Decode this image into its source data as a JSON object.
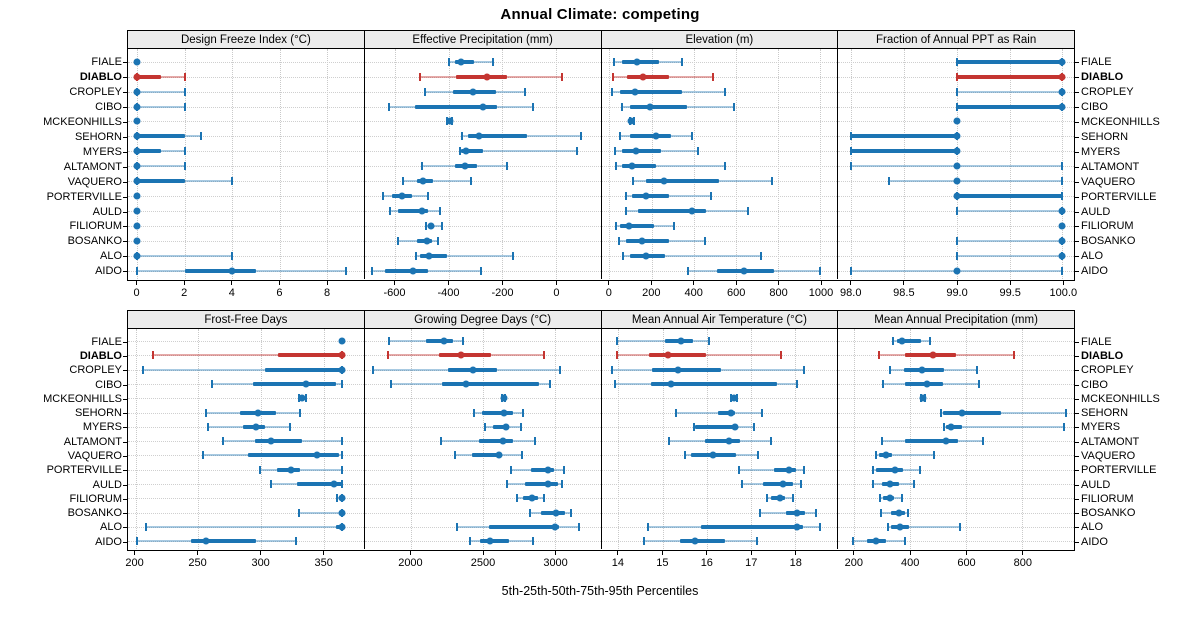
{
  "title": "Annual Climate: competing",
  "footer": "5th-25th-50th-75th-95th Percentiles",
  "colors": {
    "blue": "#1b74b3",
    "blue_light": "rgba(27,116,179,0.38)",
    "red": "#c43531",
    "red_light": "rgba(196,53,49,0.42)",
    "strip_bg": "#ececec",
    "grid": "#cfcfcf"
  },
  "chart_data": {
    "type": "dotplot",
    "subtype": "percentile-ranges",
    "percentiles": [
      5,
      25,
      50,
      75,
      95
    ],
    "legend_note": "values per site are [p5,p25,p50,p75,p95]",
    "sites": [
      "FIALE",
      "DIABLO",
      "CROPLEY",
      "CIBO",
      "MCKEONHILLS",
      "SEHORN",
      "MYERS",
      "ALTAMONT",
      "VAQUERO",
      "PORTERVILLE",
      "AULD",
      "FILIORUM",
      "BOSANKO",
      "ALO",
      "AIDO"
    ],
    "highlight_site": "DIABLO",
    "grid": true,
    "panels": [
      {
        "band": 0,
        "title": "Design Freeze Index (°C)",
        "xlim": [
          -0.4,
          9.55
        ],
        "ticks": [
          0,
          2,
          4,
          6,
          8
        ],
        "tick_labels": [
          "0",
          "2",
          "4",
          "6",
          "8"
        ],
        "values": [
          [
            0,
            0,
            0,
            0,
            0
          ],
          [
            0,
            0,
            0,
            1,
            2
          ],
          [
            0,
            0,
            0,
            0,
            2
          ],
          [
            0,
            0,
            0,
            0,
            2
          ],
          [
            0,
            0,
            0,
            0,
            0
          ],
          [
            0,
            0,
            0,
            2,
            2.7
          ],
          [
            0,
            0,
            0,
            1,
            2
          ],
          [
            0,
            0,
            0,
            0,
            2
          ],
          [
            0,
            0,
            0,
            2,
            4
          ],
          [
            0,
            0,
            0,
            0,
            0
          ],
          [
            0,
            0,
            0,
            0,
            0
          ],
          [
            0,
            0,
            0,
            0,
            0
          ],
          [
            0,
            0,
            0,
            0,
            0
          ],
          [
            0,
            0,
            0,
            0,
            4
          ],
          [
            0,
            2,
            4,
            5,
            8.8
          ]
        ]
      },
      {
        "band": 0,
        "title": "Effective Precipitation (mm)",
        "xlim": [
          -713,
          165
        ],
        "ticks": [
          -600,
          -400,
          -200,
          0
        ],
        "tick_labels": [
          "-600",
          "-400",
          "-200",
          "0"
        ],
        "values": [
          [
            -400,
            -378,
            -355,
            -307,
            -234
          ],
          [
            -509,
            -374,
            -259,
            -183,
            20
          ],
          [
            -490,
            -384,
            -311,
            -226,
            -116
          ],
          [
            -622,
            -524,
            -271,
            -220,
            -88
          ],
          [
            -405,
            -400,
            -397,
            -393,
            -389
          ],
          [
            -350,
            -329,
            -287,
            -110,
            91
          ],
          [
            -360,
            -354,
            -335,
            -271,
            79
          ],
          [
            -500,
            -378,
            -339,
            -295,
            -183
          ],
          [
            -571,
            -518,
            -496,
            -460,
            -317
          ],
          [
            -646,
            -612,
            -573,
            -537,
            -478
          ],
          [
            -620,
            -591,
            -500,
            -476,
            -433
          ],
          [
            -485,
            -478,
            -467,
            -454,
            -424
          ],
          [
            -591,
            -518,
            -482,
            -463,
            -441
          ],
          [
            -521,
            -506,
            -473,
            -408,
            -161
          ],
          [
            -687,
            -637,
            -534,
            -478,
            -280
          ]
        ]
      },
      {
        "band": 0,
        "title": "Elevation (m)",
        "xlim": [
          -37,
          1080
        ],
        "ticks": [
          0,
          200,
          400,
          600,
          800,
          1000
        ],
        "tick_labels": [
          "0",
          "200",
          "400",
          "600",
          "800",
          "1000"
        ],
        "values": [
          [
            22,
            62,
            130,
            234,
            344
          ],
          [
            19,
            86,
            159,
            281,
            492
          ],
          [
            11,
            53,
            122,
            344,
            550
          ],
          [
            58,
            97,
            194,
            370,
            589
          ],
          [
            98,
            102,
            105,
            110,
            116
          ],
          [
            53,
            100,
            219,
            292,
            394
          ],
          [
            27,
            58,
            128,
            245,
            422
          ],
          [
            34,
            62,
            109,
            219,
            550
          ],
          [
            112,
            175,
            261,
            519,
            769
          ],
          [
            81,
            109,
            172,
            281,
            484
          ],
          [
            78,
            136,
            391,
            456,
            656
          ],
          [
            31,
            50,
            94,
            214,
            308
          ],
          [
            47,
            81,
            156,
            281,
            453
          ],
          [
            66,
            100,
            172,
            266,
            719
          ],
          [
            375,
            508,
            636,
            781,
            1000
          ]
        ]
      },
      {
        "band": 0,
        "title": "Fraction of Annual PPT as Rain",
        "xlim": [
          97.88,
          100.11
        ],
        "ticks": [
          98.0,
          98.5,
          99.0,
          99.5,
          100.0
        ],
        "tick_labels": [
          "98.0",
          "98.5",
          "99.0",
          "99.5",
          "100.0"
        ],
        "values": [
          [
            99,
            99,
            100,
            100,
            100
          ],
          [
            99,
            99,
            100,
            100,
            100
          ],
          [
            99,
            100,
            100,
            100,
            100
          ],
          [
            99,
            99,
            100,
            100,
            100
          ],
          [
            99,
            99,
            99,
            99,
            99
          ],
          [
            98,
            98,
            99,
            99,
            99
          ],
          [
            98,
            98,
            99,
            99,
            99
          ],
          [
            98,
            99,
            99,
            99,
            100
          ],
          [
            98.36,
            99,
            99,
            99,
            100
          ],
          [
            99,
            99,
            99,
            100,
            100
          ],
          [
            99,
            100,
            100,
            100,
            100
          ],
          [
            100,
            100,
            100,
            100,
            100
          ],
          [
            99,
            100,
            100,
            100,
            100
          ],
          [
            99,
            100,
            100,
            100,
            100
          ],
          [
            98,
            99,
            99,
            99,
            100
          ]
        ]
      },
      {
        "band": 1,
        "title": "Frost-Free Days",
        "xlim": [
          194,
          382
        ],
        "ticks": [
          200,
          250,
          300,
          350
        ],
        "tick_labels": [
          "200",
          "250",
          "300",
          "350"
        ],
        "values": [
          [
            365,
            365,
            365,
            365,
            365
          ],
          [
            214,
            314,
            365,
            365,
            365
          ],
          [
            206,
            303,
            365,
            365,
            365
          ],
          [
            261,
            294,
            336,
            360,
            365
          ],
          [
            330,
            331,
            333,
            335,
            336
          ],
          [
            256,
            283,
            298,
            312,
            331
          ],
          [
            258,
            286,
            296,
            303,
            323
          ],
          [
            270,
            295,
            308,
            333,
            365
          ],
          [
            254,
            290,
            345,
            362,
            365
          ],
          [
            299,
            313,
            324,
            331,
            365
          ],
          [
            308,
            329,
            358,
            365,
            365
          ],
          [
            361,
            364,
            365,
            365,
            365
          ],
          [
            330,
            362,
            365,
            365,
            365
          ],
          [
            208,
            360,
            365,
            365,
            365
          ],
          [
            201,
            244,
            256,
            296,
            328
          ]
        ]
      },
      {
        "band": 1,
        "title": "Growing Degree Days (°C)",
        "xlim": [
          1680,
          3313
        ],
        "ticks": [
          2000,
          2500,
          3000
        ],
        "tick_labels": [
          "2000",
          "2500",
          "3000"
        ],
        "values": [
          [
            1849,
            2101,
            2232,
            2293,
            2360
          ],
          [
            1838,
            2196,
            2349,
            2552,
            2919
          ],
          [
            1737,
            2259,
            2428,
            2597,
            3029
          ],
          [
            1865,
            2214,
            2383,
            2890,
            2964
          ],
          [
            2630,
            2637,
            2642,
            2647,
            2654
          ],
          [
            2435,
            2495,
            2642,
            2705,
            2777
          ],
          [
            2511,
            2570,
            2660,
            2682,
            2759
          ],
          [
            2209,
            2473,
            2637,
            2709,
            2856
          ],
          [
            2304,
            2421,
            2608,
            2624,
            2766
          ],
          [
            2691,
            2833,
            2946,
            2991,
            3058
          ],
          [
            2664,
            2788,
            2952,
            3020,
            3047
          ],
          [
            2736,
            2777,
            2840,
            2878,
            2923
          ],
          [
            2826,
            2901,
            3007,
            3070,
            3110
          ],
          [
            2322,
            2541,
            2998,
            3029,
            3164
          ],
          [
            2412,
            2480,
            2547,
            2682,
            2845
          ]
        ]
      },
      {
        "band": 1,
        "title": "Mean Annual Air Temperature (°C)",
        "xlim": [
          13.62,
          18.95
        ],
        "ticks": [
          14,
          15,
          16,
          17,
          18
        ],
        "tick_labels": [
          "14",
          "15",
          "16",
          "17",
          "18"
        ],
        "values": [
          [
            13.96,
            15.06,
            15.41,
            15.7,
            16.05
          ],
          [
            13.98,
            14.7,
            15.13,
            15.98,
            17.67
          ],
          [
            13.85,
            14.76,
            15.35,
            16.32,
            18.2
          ],
          [
            13.93,
            14.74,
            15.19,
            17.59,
            18.04
          ],
          [
            16.55,
            16.58,
            16.61,
            16.65,
            16.69
          ],
          [
            15.3,
            16.26,
            16.54,
            16.63,
            17.24
          ],
          [
            15.7,
            15.74,
            16.63,
            16.69,
            17.06
          ],
          [
            15.15,
            15.95,
            16.5,
            16.76,
            17.46
          ],
          [
            15.5,
            15.65,
            16.13,
            16.67,
            17.16
          ],
          [
            16.72,
            17.53,
            17.85,
            18.02,
            18.2
          ],
          [
            16.79,
            17.28,
            17.73,
            17.95,
            18.13
          ],
          [
            17.36,
            17.46,
            17.65,
            17.76,
            17.95
          ],
          [
            17.21,
            17.78,
            18.05,
            18.22,
            18.47
          ],
          [
            14.67,
            15.87,
            18.04,
            18.17,
            18.57
          ],
          [
            14.59,
            15.39,
            15.73,
            16.41,
            17.13
          ]
        ]
      },
      {
        "band": 1,
        "title": "Mean Annual Precipitation (mm)",
        "xlim": [
          144,
          985
        ],
        "ticks": [
          200,
          400,
          600,
          800
        ],
        "tick_labels": [
          "200",
          "400",
          "600",
          "800"
        ],
        "values": [
          [
            339,
            353,
            371,
            440,
            473
          ],
          [
            291,
            383,
            483,
            563,
            770
          ],
          [
            327,
            377,
            441,
            521,
            638
          ],
          [
            305,
            383,
            461,
            519,
            647
          ],
          [
            440,
            444,
            447,
            450,
            454
          ],
          [
            509,
            519,
            587,
            725,
            958
          ],
          [
            521,
            527,
            545,
            587,
            950
          ],
          [
            299,
            383,
            527,
            571,
            662
          ],
          [
            279,
            291,
            315,
            335,
            485
          ],
          [
            267,
            279,
            347,
            375,
            435
          ],
          [
            269,
            299,
            327,
            359,
            416
          ],
          [
            293,
            305,
            327,
            344,
            371
          ],
          [
            296,
            332,
            359,
            383,
            392
          ],
          [
            323,
            332,
            363,
            395,
            579
          ],
          [
            195,
            248,
            279,
            315,
            383
          ]
        ]
      }
    ]
  }
}
